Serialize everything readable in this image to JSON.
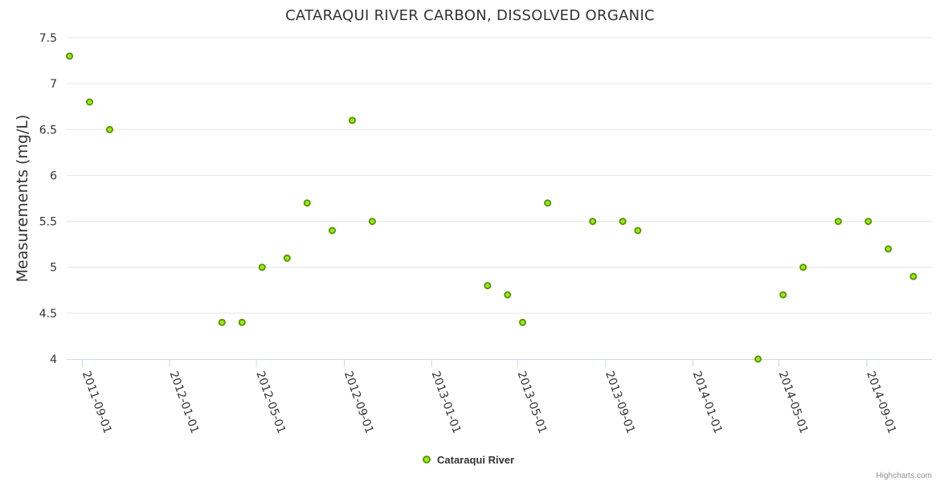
{
  "chart_data": {
    "type": "scatter",
    "title": "CATARAQUI RIVER CARBON, DISSOLVED ORGANIC",
    "ylabel": "Measurements (mg/L)",
    "xlabel": "",
    "x_axis_type": "date",
    "xlim": [
      "2011-08-10",
      "2014-12-01"
    ],
    "ylim": [
      4,
      7.5
    ],
    "y_ticks": [
      "4",
      "4.5",
      "5",
      "5.5",
      "6",
      "6.5",
      "7",
      "7.5"
    ],
    "x_ticks": [
      "2011-09-01",
      "2012-01-01",
      "2012-05-01",
      "2012-09-01",
      "2013-01-01",
      "2013-05-01",
      "2013-09-01",
      "2014-01-01",
      "2014-05-01",
      "2014-09-01"
    ],
    "grid": "horizontal",
    "legend_position": "bottom-center",
    "series": [
      {
        "name": "Cataraqui River",
        "color": "#90ed1a",
        "border_color": "#5a8f00",
        "points": [
          {
            "x": "2011-08-14",
            "y": 7.3
          },
          {
            "x": "2011-09-11",
            "y": 6.8
          },
          {
            "x": "2011-10-09",
            "y": 6.5
          },
          {
            "x": "2012-03-14",
            "y": 4.4
          },
          {
            "x": "2012-04-11",
            "y": 4.4
          },
          {
            "x": "2012-05-09",
            "y": 5.0
          },
          {
            "x": "2012-06-13",
            "y": 5.1
          },
          {
            "x": "2012-07-11",
            "y": 5.7
          },
          {
            "x": "2012-08-15",
            "y": 5.4
          },
          {
            "x": "2012-09-12",
            "y": 6.6
          },
          {
            "x": "2012-10-10",
            "y": 5.5
          },
          {
            "x": "2013-03-20",
            "y": 4.8
          },
          {
            "x": "2013-04-17",
            "y": 4.7
          },
          {
            "x": "2013-05-08",
            "y": 4.4
          },
          {
            "x": "2013-06-12",
            "y": 5.7
          },
          {
            "x": "2013-08-14",
            "y": 5.5
          },
          {
            "x": "2013-09-25",
            "y": 5.5
          },
          {
            "x": "2013-10-16",
            "y": 5.4
          },
          {
            "x": "2014-04-02",
            "y": 4.0
          },
          {
            "x": "2014-05-07",
            "y": 4.7
          },
          {
            "x": "2014-06-04",
            "y": 5.0
          },
          {
            "x": "2014-07-23",
            "y": 5.5
          },
          {
            "x": "2014-09-03",
            "y": 5.5
          },
          {
            "x": "2014-10-01",
            "y": 5.2
          },
          {
            "x": "2014-11-05",
            "y": 4.9
          }
        ]
      }
    ]
  },
  "credits": "Highcharts.com"
}
